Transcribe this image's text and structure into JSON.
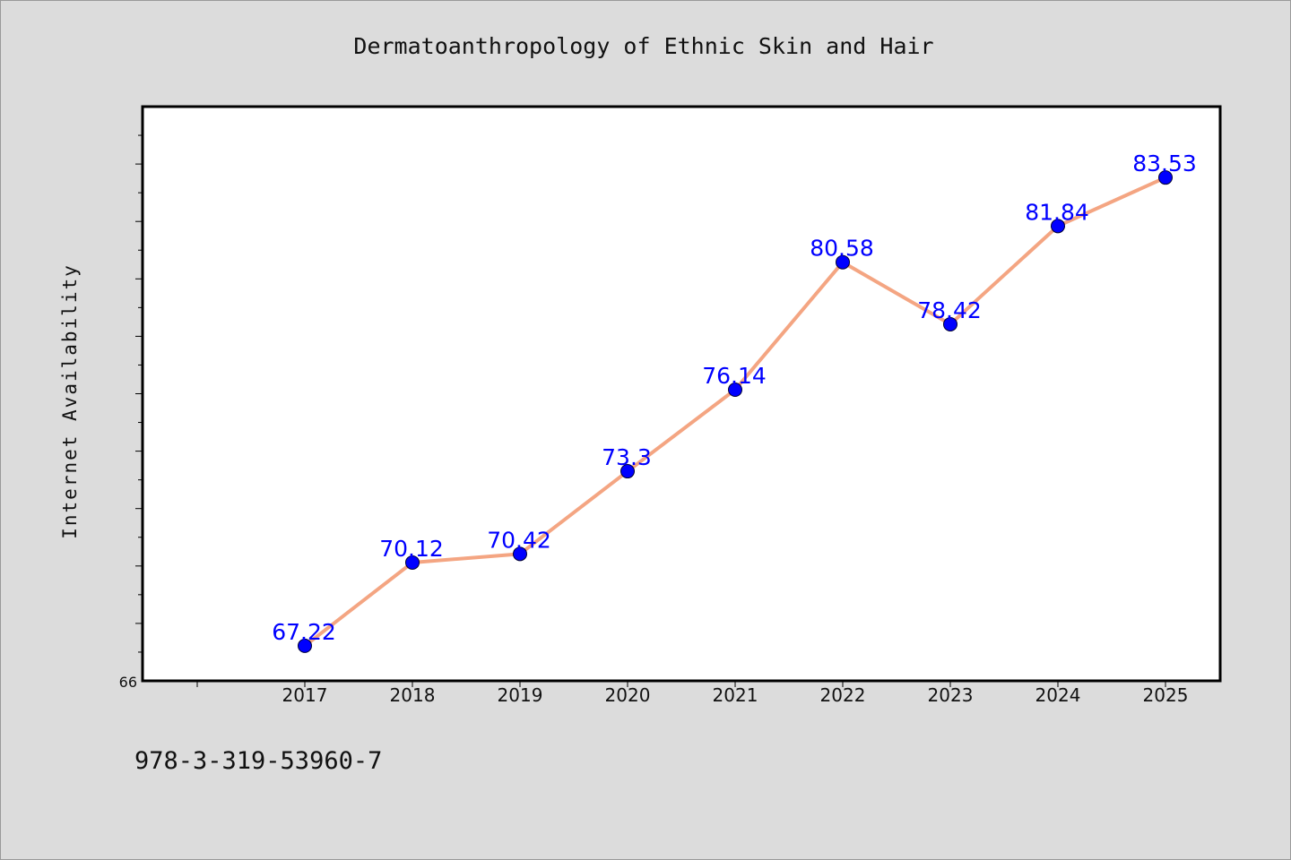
{
  "colors": {
    "background": "#dcdcdc",
    "plot_background": "#ffffff",
    "line": "#f4a582",
    "marker": "#0000ff",
    "label": "#0000ff"
  },
  "footer": {
    "code": "978-3-319-53960-7"
  },
  "chart_data": {
    "type": "line",
    "title": "Dermatoanthropology of Ethnic Skin and Hair",
    "xlabel": "",
    "ylabel": "Internet Availability",
    "categories": [
      "2017",
      "2018",
      "2019",
      "2020",
      "2021",
      "2022",
      "2023",
      "2024",
      "2025"
    ],
    "series": [
      {
        "values": [
          67.22,
          70.12,
          70.42,
          73.3,
          76.14,
          80.58,
          78.42,
          81.84,
          83.53
        ]
      }
    ],
    "data_labels": [
      "67.22",
      "70.12",
      "70.42",
      "73.3",
      "76.14",
      "80.58",
      "78.42",
      "81.84",
      "83.53"
    ],
    "ylim": [
      66,
      86
    ],
    "y_tick_labels": [
      "66"
    ],
    "y_minor_step": 1,
    "grid": false,
    "legend": "none"
  }
}
